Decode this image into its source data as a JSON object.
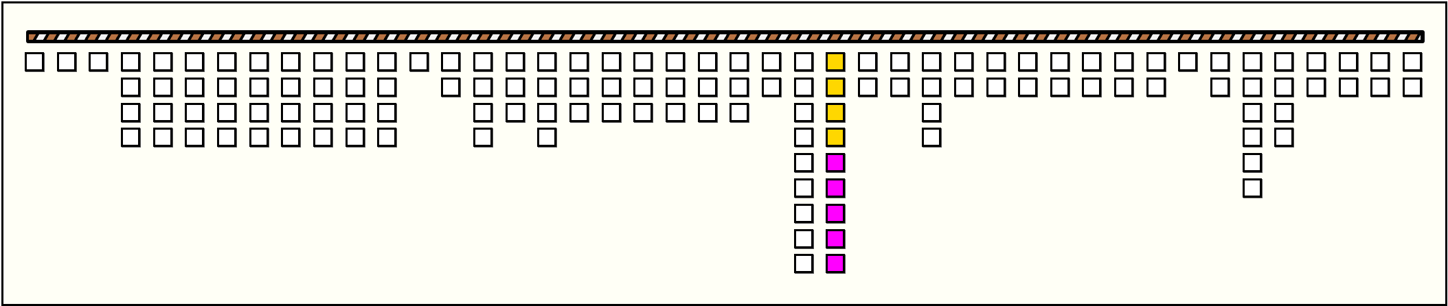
{
  "board": {
    "column_heights": [
      1,
      1,
      1,
      4,
      4,
      4,
      4,
      4,
      4,
      4,
      4,
      4,
      1,
      2,
      4,
      3,
      4,
      3,
      3,
      3,
      3,
      3,
      3,
      2,
      9,
      9,
      2,
      2,
      4,
      2,
      2,
      2,
      2,
      2,
      2,
      2,
      1,
      2,
      6,
      4,
      2,
      2,
      2,
      2
    ],
    "highlighted_column": 26,
    "highlighted_cells": [
      "yellow",
      "yellow",
      "yellow",
      "yellow",
      "magenta",
      "magenta",
      "magenta",
      "magenta",
      "magenta"
    ]
  },
  "colors": {
    "background": "#fffff6",
    "cell": "#ffffff",
    "yellow": "#ffd700",
    "magenta": "#ff00ff",
    "bar_stripe": "#b87343"
  }
}
